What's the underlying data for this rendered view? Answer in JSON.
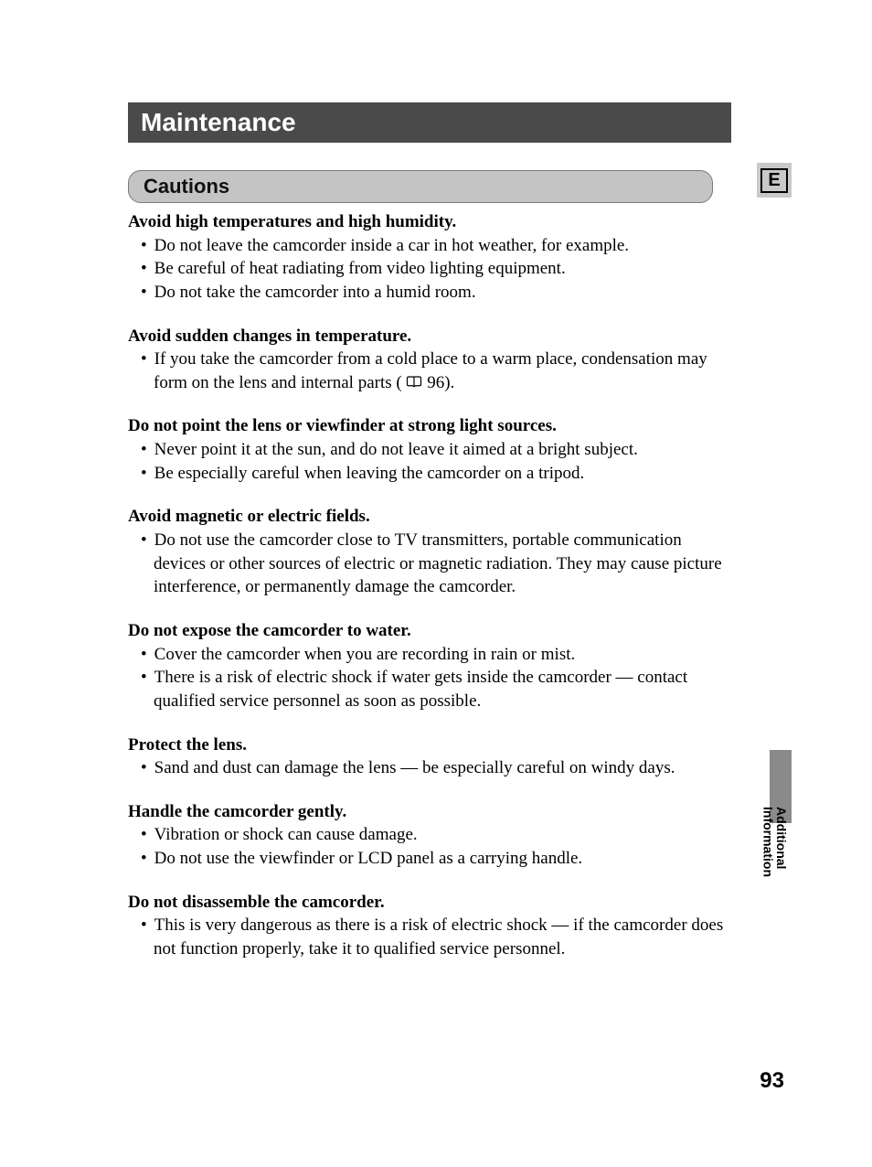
{
  "page": {
    "title": "Maintenance",
    "subsection": "Cautions",
    "lang_badge": "E",
    "side_label": "Additional\nInformation",
    "page_number": "93",
    "ref_page": "96"
  },
  "colors": {
    "title_bg": "#4a4a4a",
    "title_fg": "#ffffff",
    "sub_bg": "#c4c4c4",
    "sub_border": "#7a7a7a",
    "badge_bg": "#c9c9c9",
    "tab_bg": "#8a8a8a",
    "text": "#000000",
    "page_bg": "#ffffff"
  },
  "typography": {
    "title_font": "Arial",
    "title_size_pt": 21,
    "sub_size_pt": 16,
    "body_font": "Times New Roman",
    "body_size_pt": 14,
    "heading_weight": "bold"
  },
  "sections": [
    {
      "heading": "Avoid high temperatures and high humidity.",
      "items": [
        {
          "text": "Do not leave the camcorder inside a car in hot weather, for example."
        },
        {
          "text": "Be careful of heat radiating from video lighting equipment."
        },
        {
          "text": "Do not take the camcorder into a humid room."
        }
      ]
    },
    {
      "heading": "Avoid sudden changes in temperature.",
      "items": [
        {
          "prefix": "If you take the camcorder from a cold place to a warm place, condensation may form on the lens and internal parts ( ",
          "has_icon": true,
          "ref": "96",
          "suffix": ")."
        }
      ]
    },
    {
      "heading": "Do not point the lens or viewfinder at strong light sources.",
      "items": [
        {
          "text": "Never point it at the sun, and do not leave it aimed at a bright subject."
        },
        {
          "text": "Be especially careful when leaving the camcorder on a tripod."
        }
      ]
    },
    {
      "heading": "Avoid magnetic or electric fields.",
      "items": [
        {
          "text": "Do not use the camcorder close to TV transmitters, portable communication devices or other sources of electric or magnetic radiation. They may cause picture interference, or permanently damage the camcorder."
        }
      ]
    },
    {
      "heading": "Do not expose the camcorder to water.",
      "items": [
        {
          "text": "Cover the camcorder when you are recording in rain or mist."
        },
        {
          "text": "There is a risk of electric shock if water gets inside the camcorder — contact qualified service personnel as soon as possible."
        }
      ]
    },
    {
      "heading": "Protect the lens.",
      "items": [
        {
          "text": "Sand and dust can damage the lens — be especially careful on windy days."
        }
      ]
    },
    {
      "heading": "Handle the camcorder gently.",
      "items": [
        {
          "text": "Vibration or shock can cause damage."
        },
        {
          "text": "Do not use the viewfinder or LCD panel as a carrying handle."
        }
      ]
    },
    {
      "heading": "Do not disassemble the camcorder.",
      "items": [
        {
          "text": "This is very dangerous as there is a risk of electric shock — if the camcorder does not function properly, take it to qualified service personnel."
        }
      ]
    }
  ]
}
